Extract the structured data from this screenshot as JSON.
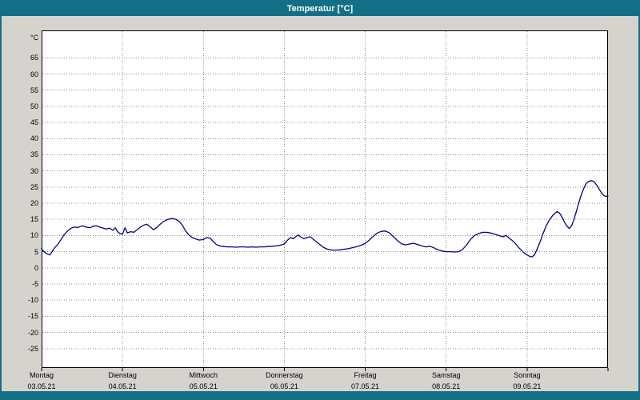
{
  "window": {
    "title": "Temperatur [°C]",
    "titlebar_color": "#136f85",
    "background_color": "#d6d3ce"
  },
  "chart_data": {
    "type": "line",
    "title": "Temperatur [°C]",
    "y_unit_label": "°C",
    "ylim": [
      -31,
      73.5
    ],
    "ylabel_ticks": [
      65,
      60,
      55,
      50,
      45,
      40,
      35,
      30,
      25,
      20,
      15,
      10,
      5,
      0,
      -5,
      -10,
      -15,
      -20,
      -25
    ],
    "x_days": [
      {
        "name": "Montag",
        "date": "03.05.21"
      },
      {
        "name": "Dienstag",
        "date": "04.05.21"
      },
      {
        "name": "Mittwoch",
        "date": "05.05.21"
      },
      {
        "name": "Donnerstag",
        "date": "06.05.21"
      },
      {
        "name": "Freitag",
        "date": "07.05.21"
      },
      {
        "name": "Samstag",
        "date": "08.05.21"
      },
      {
        "name": "Sonntag",
        "date": "09.05.21"
      }
    ],
    "grid": true,
    "legend": false,
    "line_color": "#00008b",
    "grid_color": "#909090",
    "plot_background": "#ffffff",
    "series": [
      {
        "name": "Temperatur",
        "points": [
          [
            0.0,
            6.0
          ],
          [
            0.02,
            5.2
          ],
          [
            0.05,
            4.6
          ],
          [
            0.08,
            4.2
          ],
          [
            0.1,
            4.0
          ],
          [
            0.13,
            5.0
          ],
          [
            0.16,
            6.2
          ],
          [
            0.2,
            7.2
          ],
          [
            0.24,
            8.8
          ],
          [
            0.28,
            10.3
          ],
          [
            0.32,
            11.4
          ],
          [
            0.36,
            12.2
          ],
          [
            0.4,
            12.6
          ],
          [
            0.45,
            12.5
          ],
          [
            0.5,
            13.0
          ],
          [
            0.55,
            12.6
          ],
          [
            0.6,
            12.4
          ],
          [
            0.64,
            12.9
          ],
          [
            0.68,
            13.0
          ],
          [
            0.72,
            12.6
          ],
          [
            0.76,
            12.3
          ],
          [
            0.8,
            12.0
          ],
          [
            0.84,
            12.3
          ],
          [
            0.88,
            11.6
          ],
          [
            0.91,
            12.4
          ],
          [
            0.94,
            11.2
          ],
          [
            0.97,
            10.6
          ],
          [
            1.0,
            10.4
          ],
          [
            1.03,
            12.4
          ],
          [
            1.06,
            10.8
          ],
          [
            1.1,
            11.2
          ],
          [
            1.14,
            11.0
          ],
          [
            1.18,
            11.8
          ],
          [
            1.22,
            12.6
          ],
          [
            1.26,
            13.2
          ],
          [
            1.3,
            13.5
          ],
          [
            1.34,
            12.8
          ],
          [
            1.38,
            11.8
          ],
          [
            1.42,
            12.4
          ],
          [
            1.46,
            13.4
          ],
          [
            1.5,
            14.2
          ],
          [
            1.54,
            14.8
          ],
          [
            1.58,
            15.1
          ],
          [
            1.62,
            15.3
          ],
          [
            1.66,
            15.0
          ],
          [
            1.7,
            14.4
          ],
          [
            1.74,
            13.2
          ],
          [
            1.78,
            11.4
          ],
          [
            1.82,
            10.2
          ],
          [
            1.86,
            9.4
          ],
          [
            1.9,
            9.0
          ],
          [
            1.95,
            8.6
          ],
          [
            2.0,
            8.8
          ],
          [
            2.04,
            9.4
          ],
          [
            2.08,
            9.2
          ],
          [
            2.12,
            8.2
          ],
          [
            2.16,
            7.2
          ],
          [
            2.2,
            6.8
          ],
          [
            2.25,
            6.6
          ],
          [
            2.3,
            6.5
          ],
          [
            2.35,
            6.5
          ],
          [
            2.4,
            6.4
          ],
          [
            2.45,
            6.5
          ],
          [
            2.5,
            6.5
          ],
          [
            2.55,
            6.4
          ],
          [
            2.6,
            6.5
          ],
          [
            2.65,
            6.4
          ],
          [
            2.7,
            6.5
          ],
          [
            2.75,
            6.5
          ],
          [
            2.8,
            6.6
          ],
          [
            2.85,
            6.7
          ],
          [
            2.9,
            6.8
          ],
          [
            2.95,
            7.0
          ],
          [
            3.0,
            7.4
          ],
          [
            3.04,
            8.6
          ],
          [
            3.08,
            9.4
          ],
          [
            3.11,
            9.0
          ],
          [
            3.14,
            9.6
          ],
          [
            3.17,
            10.2
          ],
          [
            3.2,
            9.6
          ],
          [
            3.24,
            9.0
          ],
          [
            3.28,
            9.4
          ],
          [
            3.32,
            9.6
          ],
          [
            3.36,
            8.8
          ],
          [
            3.4,
            8.0
          ],
          [
            3.44,
            7.2
          ],
          [
            3.48,
            6.4
          ],
          [
            3.52,
            5.9
          ],
          [
            3.56,
            5.6
          ],
          [
            3.6,
            5.5
          ],
          [
            3.65,
            5.5
          ],
          [
            3.7,
            5.6
          ],
          [
            3.75,
            5.8
          ],
          [
            3.8,
            6.0
          ],
          [
            3.85,
            6.3
          ],
          [
            3.9,
            6.6
          ],
          [
            3.95,
            7.0
          ],
          [
            4.0,
            7.6
          ],
          [
            4.05,
            8.6
          ],
          [
            4.1,
            9.8
          ],
          [
            4.15,
            10.8
          ],
          [
            4.2,
            11.3
          ],
          [
            4.25,
            11.4
          ],
          [
            4.3,
            10.8
          ],
          [
            4.35,
            9.6
          ],
          [
            4.4,
            8.4
          ],
          [
            4.45,
            7.4
          ],
          [
            4.5,
            7.1
          ],
          [
            4.55,
            7.4
          ],
          [
            4.6,
            7.6
          ],
          [
            4.65,
            7.2
          ],
          [
            4.7,
            6.8
          ],
          [
            4.75,
            6.5
          ],
          [
            4.8,
            6.7
          ],
          [
            4.85,
            6.2
          ],
          [
            4.9,
            5.6
          ],
          [
            4.95,
            5.2
          ],
          [
            5.0,
            5.0
          ],
          [
            5.05,
            5.0
          ],
          [
            5.1,
            4.9
          ],
          [
            5.15,
            5.0
          ],
          [
            5.2,
            5.6
          ],
          [
            5.25,
            7.0
          ],
          [
            5.3,
            8.8
          ],
          [
            5.35,
            10.0
          ],
          [
            5.4,
            10.6
          ],
          [
            5.45,
            11.0
          ],
          [
            5.5,
            11.0
          ],
          [
            5.55,
            10.8
          ],
          [
            5.6,
            10.4
          ],
          [
            5.65,
            10.0
          ],
          [
            5.7,
            9.6
          ],
          [
            5.74,
            10.0
          ],
          [
            5.78,
            9.2
          ],
          [
            5.82,
            8.4
          ],
          [
            5.86,
            7.4
          ],
          [
            5.9,
            6.2
          ],
          [
            5.94,
            5.2
          ],
          [
            5.97,
            4.5
          ],
          [
            6.0,
            4.0
          ],
          [
            6.03,
            3.6
          ],
          [
            6.06,
            3.4
          ],
          [
            6.09,
            4.0
          ],
          [
            6.12,
            5.6
          ],
          [
            6.16,
            8.0
          ],
          [
            6.2,
            10.8
          ],
          [
            6.24,
            13.2
          ],
          [
            6.28,
            15.0
          ],
          [
            6.31,
            16.0
          ],
          [
            6.34,
            16.8
          ],
          [
            6.37,
            17.4
          ],
          [
            6.4,
            17.0
          ],
          [
            6.43,
            15.8
          ],
          [
            6.46,
            14.2
          ],
          [
            6.49,
            13.0
          ],
          [
            6.52,
            12.2
          ],
          [
            6.55,
            13.0
          ],
          [
            6.58,
            15.0
          ],
          [
            6.61,
            17.6
          ],
          [
            6.64,
            20.2
          ],
          [
            6.67,
            22.6
          ],
          [
            6.7,
            24.6
          ],
          [
            6.73,
            26.0
          ],
          [
            6.76,
            26.8
          ],
          [
            6.8,
            27.0
          ],
          [
            6.83,
            26.6
          ],
          [
            6.86,
            25.6
          ],
          [
            6.89,
            24.4
          ],
          [
            6.92,
            23.2
          ],
          [
            6.95,
            22.4
          ],
          [
            6.97,
            22.1
          ],
          [
            7.0,
            22.3
          ]
        ]
      }
    ]
  }
}
